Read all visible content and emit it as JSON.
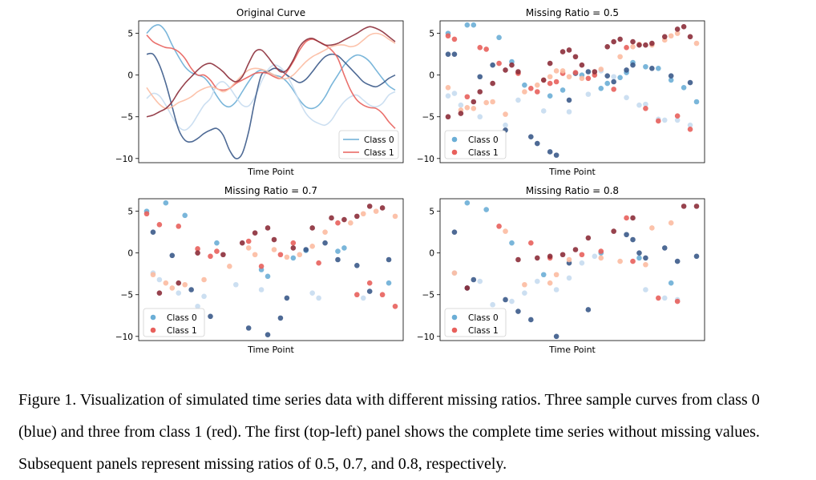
{
  "figure": {
    "xlabel": "Time Point",
    "yticks": [
      5,
      0,
      -5,
      -10
    ],
    "ylim": [
      -10.5,
      6.5
    ],
    "class_colors": {
      "class0": [
        "#6baed6",
        "#c6dbef",
        "#3b5a8a"
      ],
      "class1": [
        "#e8605c",
        "#fcbba1",
        "#8c2d3a"
      ],
      "legend0": "#6baed6",
      "legend1": "#e8605c"
    },
    "legend_labels": [
      "Class 0",
      "Class 1"
    ],
    "panel_titles": [
      "Original Curve",
      "Missing Ratio = 0.5",
      "Missing Ratio = 0.7",
      "Missing Ratio = 0.8"
    ]
  },
  "chart_data": [
    {
      "type": "line",
      "title": "Original Curve",
      "xlabel": "Time Point",
      "ylabel": "",
      "ylim": [
        -10.5,
        6.5
      ],
      "x": [
        0,
        1,
        2,
        3,
        4,
        5,
        6,
        7,
        8,
        9,
        10,
        11,
        12,
        13,
        14,
        15,
        16,
        17,
        18,
        19,
        20,
        21,
        22,
        23,
        24,
        25,
        26,
        27,
        28,
        29,
        30,
        31,
        32,
        33,
        34,
        35,
        36,
        37,
        38,
        39
      ],
      "legend": [
        "Class 0",
        "Class 1"
      ],
      "series": [
        {
          "class": 0,
          "color": "#6baed6",
          "values": [
            5.0,
            5.8,
            6.0,
            5.2,
            3.6,
            2.2,
            1.0,
            0.3,
            0.0,
            -0.3,
            -1.2,
            -2.5,
            -3.5,
            -3.8,
            -3.2,
            -2.0,
            -0.8,
            0.2,
            0.6,
            0.4,
            0.0,
            -0.2,
            -0.8,
            -1.8,
            -3.0,
            -3.8,
            -4.0,
            -3.6,
            -2.6,
            -1.2,
            0.0,
            1.2,
            2.0,
            2.4,
            2.2,
            1.6,
            0.6,
            -0.4,
            -1.3,
            -1.8
          ]
        },
        {
          "class": 0,
          "color": "#c6dbef",
          "values": [
            -2.8,
            -2.2,
            -2.5,
            -3.6,
            -5.0,
            -6.2,
            -6.6,
            -6.0,
            -4.8,
            -3.6,
            -2.8,
            -1.2,
            -0.8,
            -1.5,
            -2.6,
            -3.6,
            -3.7,
            -2.6,
            -0.8,
            0.6,
            1.2,
            0.9,
            0.0,
            -1.5,
            -3.2,
            -4.6,
            -5.4,
            -5.8,
            -6.0,
            -5.4,
            -4.2,
            -3.2,
            -2.6,
            -2.4,
            -3.0,
            -3.6,
            -3.8,
            -3.4,
            -2.4,
            -2.0
          ]
        },
        {
          "class": 0,
          "color": "#3b5a8a",
          "values": [
            2.5,
            2.5,
            1.2,
            -1.0,
            -3.8,
            -6.5,
            -7.8,
            -8.0,
            -7.6,
            -7.0,
            -6.6,
            -6.4,
            -7.2,
            -9.0,
            -10.0,
            -9.4,
            -6.8,
            -3.0,
            0.0,
            0.4,
            0.8,
            0.6,
            0.0,
            -0.5,
            -0.9,
            -0.5,
            0.4,
            1.4,
            2.2,
            2.5,
            2.3,
            1.6,
            0.8,
            0.0,
            -0.8,
            -1.2,
            -1.4,
            -1.0,
            -0.4,
            0.0
          ]
        },
        {
          "class": 1,
          "color": "#e8605c",
          "values": [
            4.8,
            4.0,
            3.6,
            3.3,
            3.2,
            2.8,
            2.0,
            0.8,
            0.0,
            0.0,
            -0.6,
            -1.6,
            -1.8,
            -1.6,
            -1.0,
            -0.6,
            -0.2,
            0.2,
            0.3,
            0.2,
            -0.2,
            -0.4,
            0.4,
            1.6,
            3.0,
            4.0,
            4.3,
            4.0,
            3.6,
            3.0,
            2.0,
            0.0,
            -1.8,
            -3.0,
            -3.6,
            -3.9,
            -4.0,
            -4.6,
            -5.6,
            -6.4
          ]
        },
        {
          "class": 1,
          "color": "#fcbba1",
          "values": [
            -1.5,
            -2.6,
            -3.5,
            -4.0,
            -3.8,
            -3.3,
            -3.0,
            -2.6,
            -2.0,
            -1.6,
            -1.4,
            -1.6,
            -2.0,
            -1.6,
            -0.8,
            0.0,
            0.6,
            0.8,
            0.7,
            0.4,
            0.0,
            -0.4,
            -0.4,
            0.0,
            0.8,
            1.6,
            2.2,
            2.6,
            3.0,
            3.4,
            3.6,
            3.6,
            3.4,
            3.6,
            4.2,
            4.8,
            5.0,
            4.8,
            4.3,
            3.8
          ]
        },
        {
          "class": 1,
          "color": "#8c2d3a",
          "values": [
            -5.0,
            -4.8,
            -4.4,
            -4.0,
            -3.2,
            -2.0,
            -1.0,
            -0.2,
            0.6,
            1.2,
            1.4,
            1.0,
            0.4,
            -0.4,
            -0.8,
            -0.2,
            1.4,
            2.8,
            3.0,
            2.2,
            1.2,
            0.4,
            0.6,
            1.8,
            3.4,
            4.2,
            4.4,
            4.0,
            3.6,
            3.6,
            3.8,
            4.2,
            4.6,
            5.0,
            5.5,
            5.8,
            5.6,
            5.2,
            4.6,
            4.0
          ]
        }
      ]
    },
    {
      "type": "scatter",
      "title": "Missing Ratio = 0.5",
      "xlabel": "Time Point",
      "ylabel": "",
      "ylim": [
        -10.5,
        6.5
      ],
      "legend": [
        "Class 0",
        "Class 1"
      ],
      "series": [
        {
          "class": 0,
          "color": "#6baed6",
          "x": [
            0,
            3,
            4,
            8,
            10,
            12,
            16,
            18,
            21,
            24,
            25,
            27,
            28,
            29,
            31,
            33,
            35,
            37,
            39
          ],
          "y": [
            5.0,
            6.0,
            6.0,
            4.5,
            1.6,
            -1.2,
            -2.5,
            -1.8,
            0.0,
            -1.6,
            -1.0,
            -0.3,
            0.3,
            1.5,
            1.0,
            0.8,
            -0.6,
            -1.5,
            -3.2
          ]
        },
        {
          "class": 0,
          "color": "#c6dbef",
          "x": [
            0,
            1,
            2,
            5,
            9,
            11,
            15,
            19,
            22,
            24,
            26,
            28,
            30,
            31,
            33,
            34,
            36,
            38
          ],
          "y": [
            -2.5,
            -2.2,
            -3.6,
            -5.0,
            -6.0,
            -3.0,
            -4.3,
            -4.4,
            -2.3,
            0.5,
            -0.2,
            -2.7,
            -3.6,
            -3.5,
            -5.3,
            -5.4,
            -5.4,
            -6.0
          ]
        },
        {
          "class": 0,
          "color": "#3b5a8a",
          "x": [
            0,
            1,
            5,
            7,
            9,
            13,
            14,
            16,
            17,
            19,
            20,
            22,
            25,
            26,
            28,
            29,
            32,
            35,
            38
          ],
          "y": [
            2.5,
            2.5,
            -0.2,
            1.2,
            -6.6,
            -7.4,
            -8.2,
            -9.2,
            -9.6,
            -3.0,
            0.2,
            0.4,
            -0.1,
            -0.8,
            0.6,
            1.2,
            0.8,
            -0.1,
            -0.9
          ]
        },
        {
          "class": 1,
          "color": "#e8605c",
          "x": [
            0,
            1,
            3,
            5,
            6,
            8,
            11,
            13,
            14,
            16,
            17,
            18,
            20,
            22,
            23,
            26,
            28,
            31,
            33,
            36,
            38
          ],
          "y": [
            4.7,
            4.3,
            -2.6,
            3.3,
            3.1,
            1.4,
            0.2,
            -1.6,
            -2.0,
            -1.0,
            -0.8,
            0.2,
            0.3,
            -0.4,
            0.0,
            -1.7,
            3.3,
            -4.0,
            -5.5,
            -4.9,
            -6.5
          ]
        },
        {
          "class": 1,
          "color": "#fcbba1",
          "x": [
            0,
            2,
            3,
            4,
            6,
            7,
            9,
            12,
            14,
            15,
            16,
            17,
            18,
            19,
            21,
            24,
            27,
            29,
            30,
            32,
            34,
            35,
            36,
            39
          ],
          "y": [
            -1.5,
            -4.2,
            -3.9,
            -4.0,
            -3.3,
            -3.2,
            -4.7,
            -2.0,
            -1.2,
            -0.6,
            -0.2,
            0.5,
            0.5,
            -0.2,
            -0.4,
            0.7,
            2.2,
            3.4,
            3.7,
            3.6,
            4.2,
            4.7,
            5.0,
            3.8
          ]
        },
        {
          "class": 1,
          "color": "#8c2d3a",
          "x": [
            0,
            2,
            4,
            5,
            7,
            9,
            10,
            11,
            15,
            16,
            18,
            19,
            20,
            21,
            23,
            25,
            26,
            27,
            29,
            30,
            31,
            32,
            34,
            36,
            37,
            38
          ],
          "y": [
            -5.0,
            -4.6,
            -3.2,
            -2.0,
            -1.0,
            0.6,
            1.2,
            0.4,
            -0.6,
            1.4,
            2.8,
            3.0,
            2.2,
            1.2,
            0.4,
            3.4,
            4.0,
            4.3,
            4.0,
            3.6,
            3.6,
            3.8,
            4.6,
            5.5,
            5.8,
            4.6
          ]
        }
      ]
    },
    {
      "type": "scatter",
      "title": "Missing Ratio = 0.7",
      "xlabel": "Time Point",
      "ylabel": "",
      "ylim": [
        -10.5,
        6.5
      ],
      "legend": [
        "Class 0",
        "Class 1"
      ],
      "series": [
        {
          "class": 0,
          "color": "#6baed6",
          "x": [
            0,
            3,
            6,
            11,
            18,
            19,
            23,
            25,
            30,
            31,
            38
          ],
          "y": [
            5.0,
            6.0,
            4.5,
            1.2,
            -2.0,
            -2.8,
            -0.6,
            0.3,
            0.2,
            0.6,
            -3.6
          ]
        },
        {
          "class": 0,
          "color": "#c6dbef",
          "x": [
            1,
            2,
            5,
            8,
            9,
            14,
            18,
            26,
            27,
            34
          ],
          "y": [
            -2.4,
            -3.2,
            -4.8,
            -6.4,
            -5.2,
            -3.8,
            -4.4,
            -4.8,
            -5.4,
            -5.4
          ]
        },
        {
          "class": 0,
          "color": "#3b5a8a",
          "x": [
            1,
            4,
            7,
            10,
            16,
            19,
            21,
            22,
            25,
            28,
            30,
            33,
            35,
            38
          ],
          "y": [
            2.5,
            -0.3,
            -4.4,
            -7.6,
            -9.0,
            -9.8,
            -7.8,
            -5.4,
            0.4,
            1.2,
            -0.8,
            -1.5,
            -4.6,
            -0.8
          ]
        },
        {
          "class": 1,
          "color": "#e8605c",
          "x": [
            0,
            2,
            5,
            8,
            10,
            11,
            16,
            18,
            21,
            23,
            27,
            30,
            33,
            35,
            37,
            39
          ],
          "y": [
            4.7,
            3.4,
            3.2,
            0.5,
            -0.4,
            0.2,
            1.4,
            -1.6,
            -0.2,
            1.2,
            -1.2,
            3.6,
            -5.0,
            -3.6,
            -5.0,
            -6.4
          ]
        },
        {
          "class": 1,
          "color": "#fcbba1",
          "x": [
            1,
            3,
            4,
            6,
            9,
            13,
            16,
            17,
            20,
            22,
            24,
            26,
            28,
            32,
            34,
            36,
            39
          ],
          "y": [
            -2.6,
            -3.6,
            -4.2,
            -3.8,
            -3.2,
            -1.6,
            0.6,
            -0.2,
            0.4,
            -0.5,
            -0.2,
            0.8,
            2.5,
            3.6,
            4.7,
            5.0,
            4.4
          ]
        },
        {
          "class": 1,
          "color": "#8c2d3a",
          "x": [
            2,
            5,
            8,
            12,
            15,
            17,
            19,
            20,
            23,
            26,
            29,
            31,
            33,
            35,
            37
          ],
          "y": [
            -4.8,
            -3.6,
            0.0,
            -0.2,
            1.2,
            2.4,
            3.0,
            1.6,
            0.6,
            3.0,
            4.2,
            4.0,
            4.4,
            5.6,
            5.4
          ]
        }
      ]
    },
    {
      "type": "scatter",
      "title": "Missing Ratio = 0.8",
      "xlabel": "Time Point",
      "ylabel": "",
      "ylim": [
        -10.5,
        6.5
      ],
      "legend": [
        "Class 0",
        "Class 1"
      ],
      "series": [
        {
          "class": 0,
          "color": "#6baed6",
          "x": [
            3,
            6,
            10,
            15,
            24,
            30,
            35
          ],
          "y": [
            6.0,
            5.2,
            1.2,
            -2.6,
            0.0,
            -0.6,
            -3.6
          ]
        },
        {
          "class": 0,
          "color": "#c6dbef",
          "x": [
            1,
            5,
            7,
            10,
            12,
            14,
            17,
            19,
            21,
            23,
            31,
            34,
            36
          ],
          "y": [
            -2.4,
            -3.4,
            -6.2,
            -5.8,
            -4.8,
            -3.4,
            -4.4,
            -3.0,
            -1.2,
            -0.4,
            -4.4,
            -5.4,
            -5.6
          ]
        },
        {
          "class": 0,
          "color": "#3b5a8a",
          "x": [
            1,
            3,
            4,
            9,
            11,
            13,
            17,
            19,
            22,
            28,
            29,
            30,
            31,
            34,
            36,
            39
          ],
          "y": [
            2.5,
            -4.2,
            -3.2,
            -5.6,
            -7.0,
            -8.0,
            -10.0,
            -1.2,
            -6.8,
            2.2,
            1.6,
            0.0,
            -0.6,
            0.6,
            -1.0,
            -0.4
          ]
        },
        {
          "class": 1,
          "color": "#e8605c",
          "x": [
            8,
            13,
            16,
            21,
            24,
            28,
            29,
            33,
            36
          ],
          "y": [
            3.2,
            1.2,
            -0.6,
            -0.2,
            0.2,
            4.2,
            -1.0,
            -5.4,
            -5.8
          ]
        },
        {
          "class": 1,
          "color": "#fcbba1",
          "x": [
            1,
            9,
            12,
            16,
            17,
            19,
            24,
            27,
            31,
            32,
            35
          ],
          "y": [
            -2.4,
            2.6,
            -3.8,
            -3.6,
            -2.6,
            -0.8,
            -0.6,
            -1.0,
            -1.4,
            3.0,
            3.6
          ]
        },
        {
          "class": 1,
          "color": "#8c2d3a",
          "x": [
            3,
            11,
            14,
            16,
            18,
            20,
            22,
            26,
            29,
            37,
            39
          ],
          "y": [
            -4.2,
            -0.8,
            -0.6,
            -0.4,
            -0.2,
            0.4,
            1.8,
            2.6,
            4.2,
            5.6,
            5.6
          ]
        }
      ]
    }
  ],
  "caption": {
    "text": "Figure 1. Visualization of simulated time series data with different missing ratios. Three sample curves from class 0 (blue) and three from class 1 (red). The first (top-left) panel shows the complete time series without missing values. Subsequent panels represent missing ratios of 0.5, 0.7, and 0.8, respectively."
  }
}
